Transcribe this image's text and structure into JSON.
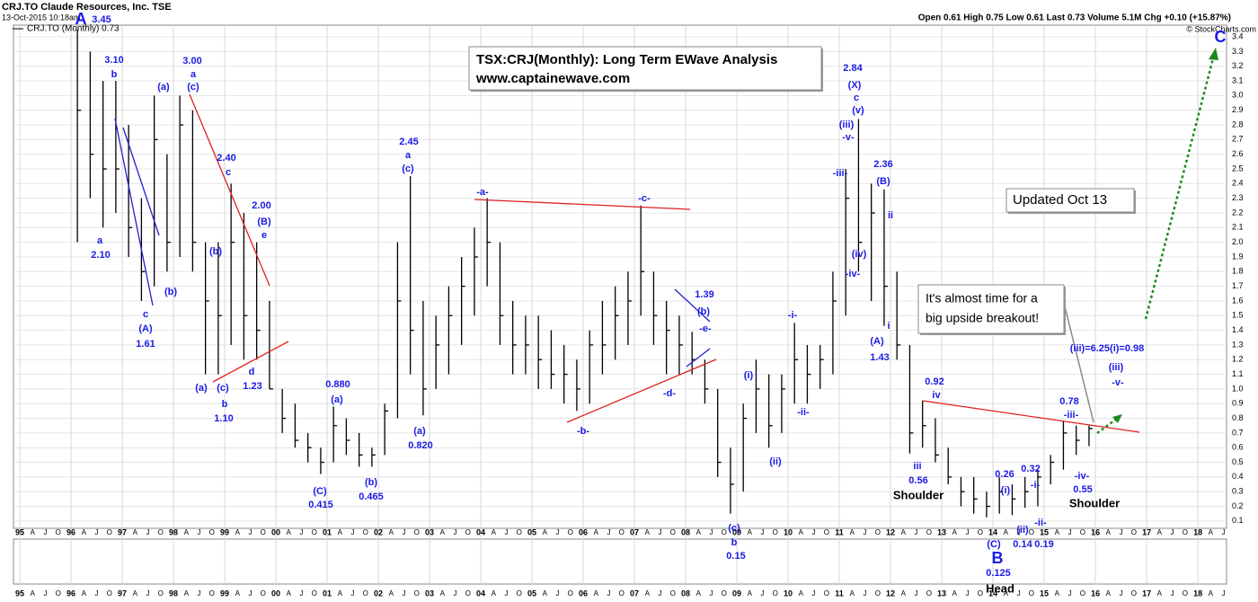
{
  "header": {
    "symbol": "CRJ.TO Claude Resources, Inc. TSE",
    "timestamp": "13-Oct-2015 10:18am",
    "legend": "CRJ.TO (Monthly) 0.73",
    "quote": "Open 0.61 High 0.75 Low 0.61 Last 0.73 Volume 5.1M Chg +0.10 (+15.87%)",
    "credit": "© StockCharts.com"
  },
  "boxes": {
    "title": [
      "TSX:CRJ(Monthly): Long Term EWave Analysis",
      "www.captainewave.com"
    ],
    "updated": "Updated Oct 13",
    "callout": [
      "It's almost time for a",
      "big upside breakout!"
    ]
  },
  "chart_data": {
    "type": "hlc",
    "color": "#000000",
    "x": [
      1996.125,
      1996.375,
      1996.625,
      1996.875,
      1997.125,
      1997.375,
      1997.625,
      1997.875,
      1998.125,
      1998.375,
      1998.625,
      1998.875,
      1999.125,
      1999.375,
      1999.625,
      1999.875,
      2000.125,
      2000.375,
      2000.625,
      2000.875,
      2001.125,
      2001.375,
      2001.625,
      2001.875,
      2002.125,
      2002.375,
      2002.625,
      2002.875,
      2003.125,
      2003.375,
      2003.625,
      2003.875,
      2004.125,
      2004.375,
      2004.625,
      2004.875,
      2005.125,
      2005.375,
      2005.625,
      2005.875,
      2006.125,
      2006.375,
      2006.625,
      2006.875,
      2007.125,
      2007.375,
      2007.625,
      2007.875,
      2008.125,
      2008.375,
      2008.625,
      2008.875,
      2009.125,
      2009.375,
      2009.625,
      2009.875,
      2010.125,
      2010.375,
      2010.625,
      2010.875,
      2011.125,
      2011.375,
      2011.625,
      2011.875,
      2012.125,
      2012.375,
      2012.625,
      2012.875,
      2013.125,
      2013.375,
      2013.625,
      2013.875,
      2014.125,
      2014.375,
      2014.625,
      2014.875,
      2015.125,
      2015.375,
      2015.625,
      2015.875
    ],
    "high": [
      3.45,
      3.3,
      3.1,
      3.1,
      2.8,
      2.3,
      3.0,
      2.6,
      3.0,
      2.9,
      2.0,
      2.0,
      2.4,
      2.2,
      2.0,
      1.6,
      1.0,
      0.9,
      0.7,
      0.6,
      0.88,
      0.8,
      0.7,
      0.6,
      0.9,
      2.0,
      2.45,
      1.6,
      1.5,
      1.7,
      1.9,
      2.1,
      2.3,
      2.0,
      1.6,
      1.5,
      1.5,
      1.4,
      1.3,
      1.2,
      1.4,
      1.6,
      1.7,
      1.8,
      2.25,
      1.8,
      1.6,
      1.5,
      1.39,
      1.2,
      1.0,
      0.6,
      0.9,
      1.2,
      1.1,
      1.1,
      1.45,
      1.3,
      1.3,
      1.8,
      2.5,
      2.84,
      2.4,
      2.36,
      1.8,
      1.3,
      0.92,
      0.8,
      0.6,
      0.4,
      0.4,
      0.3,
      0.4,
      0.35,
      0.4,
      0.45,
      0.55,
      0.78,
      0.75,
      0.75
    ],
    "low": [
      2.0,
      2.3,
      2.1,
      2.2,
      1.9,
      1.6,
      1.7,
      1.8,
      1.9,
      1.8,
      1.1,
      1.1,
      1.3,
      1.2,
      1.2,
      1.0,
      0.7,
      0.6,
      0.5,
      0.42,
      0.5,
      0.55,
      0.47,
      0.47,
      0.55,
      0.8,
      1.1,
      0.82,
      1.0,
      1.1,
      1.3,
      1.5,
      1.7,
      1.3,
      1.1,
      1.1,
      1.0,
      1.0,
      0.9,
      0.85,
      0.9,
      1.1,
      1.2,
      1.3,
      1.5,
      1.3,
      1.1,
      1.1,
      1.1,
      0.9,
      0.4,
      0.15,
      0.3,
      0.7,
      0.6,
      0.7,
      0.9,
      0.9,
      1.0,
      1.1,
      1.5,
      1.8,
      1.6,
      1.43,
      1.2,
      0.56,
      0.6,
      0.5,
      0.35,
      0.2,
      0.15,
      0.125,
      0.15,
      0.14,
      0.19,
      0.2,
      0.35,
      0.45,
      0.55,
      0.61
    ],
    "close": [
      2.9,
      2.6,
      2.5,
      2.5,
      2.1,
      1.8,
      2.7,
      2.0,
      2.8,
      2.0,
      1.6,
      1.5,
      2.0,
      1.5,
      1.4,
      1.0,
      0.8,
      0.65,
      0.6,
      0.5,
      0.75,
      0.65,
      0.55,
      0.55,
      0.85,
      1.6,
      1.4,
      1.0,
      1.3,
      1.5,
      1.7,
      1.9,
      2.0,
      1.5,
      1.3,
      1.3,
      1.2,
      1.1,
      1.1,
      1.0,
      1.3,
      1.3,
      1.5,
      1.6,
      1.8,
      1.5,
      1.4,
      1.3,
      1.2,
      1.0,
      0.5,
      0.35,
      0.8,
      1.0,
      0.75,
      1.0,
      1.2,
      1.1,
      1.2,
      1.6,
      2.3,
      2.0,
      2.2,
      1.7,
      1.3,
      0.7,
      0.75,
      0.55,
      0.4,
      0.3,
      0.25,
      0.2,
      0.3,
      0.25,
      0.3,
      0.4,
      0.5,
      0.7,
      0.65,
      0.73
    ],
    "xlim": [
      1994.877,
      2018.56
    ],
    "ylim": [
      0.05,
      3.48
    ],
    "grid": true,
    "xticks": [
      {
        "value": 1995,
        "label": "95"
      },
      {
        "value": 1996,
        "label": "96"
      },
      {
        "value": 1997,
        "label": "97"
      },
      {
        "value": 1998,
        "label": "98"
      },
      {
        "value": 1999,
        "label": "99"
      },
      {
        "value": 2000,
        "label": "00"
      },
      {
        "value": 2001,
        "label": "01"
      },
      {
        "value": 2002,
        "label": "02"
      },
      {
        "value": 2003,
        "label": "03"
      },
      {
        "value": 2004,
        "label": "04"
      },
      {
        "value": 2005,
        "label": "05"
      },
      {
        "value": 2006,
        "label": "06"
      },
      {
        "value": 2007,
        "label": "07"
      },
      {
        "value": 2008,
        "label": "08"
      },
      {
        "value": 2009,
        "label": "09"
      },
      {
        "value": 2010,
        "label": "10"
      },
      {
        "value": 2011,
        "label": "11"
      },
      {
        "value": 2012,
        "label": "12"
      },
      {
        "value": 2013,
        "label": "13"
      },
      {
        "value": 2014,
        "label": "14"
      },
      {
        "value": 2015,
        "label": "15"
      },
      {
        "value": 2016,
        "label": "16"
      },
      {
        "value": 2017,
        "label": "17"
      },
      {
        "value": 2018,
        "label": "18"
      }
    ],
    "month_letters": [
      "A",
      "J",
      "O"
    ],
    "yticks": [
      0.1,
      0.2,
      0.3,
      0.4,
      0.5,
      0.6,
      0.7,
      0.8,
      0.9,
      {
        "value": 1,
        "label": "1.0"
      },
      1.1,
      1.2,
      1.3,
      1.4,
      1.5,
      1.6,
      1.7,
      1.8,
      1.9,
      {
        "value": 2,
        "label": "2.0"
      },
      2.1,
      2.2,
      2.3,
      2.4,
      2.5,
      2.6,
      2.7,
      2.8,
      2.9,
      {
        "value": 3,
        "label": "3.0"
      },
      3.1,
      3.2,
      3.3,
      3.4
    ],
    "annotations": [
      "A",
      "3.45",
      "3.10",
      "b",
      "a",
      "2.10",
      "c",
      "(A)",
      "1.61",
      "(b)",
      "(a)",
      "3.00",
      "a",
      "(c)",
      "2.40",
      "c",
      "2.00",
      "(B)",
      "e",
      "(b)",
      "(a)",
      "(c)",
      "b",
      "1.10",
      "d",
      "1.23",
      "0.880",
      "(a)",
      "(C)",
      "0.415",
      "(b)",
      "0.465",
      "2.45",
      "a",
      "(c)",
      "(a)",
      "0.820",
      "-a-",
      "-c-",
      "-b-",
      "-d-",
      "1.39",
      "(b)",
      "-e-",
      "(c)",
      "b",
      "0.15",
      "(i)",
      "(ii)",
      "-i-",
      "-ii-",
      "2.84",
      "(X)",
      "c",
      "(v)",
      "(iii)",
      "-v-",
      "-iii-",
      "(iv)",
      "-iv-",
      "2.36",
      "(B)",
      "ii",
      "i",
      "(A)",
      "1.43",
      "0.92",
      "iv",
      "iii",
      "0.56",
      "0.26",
      "(i)",
      "0.32",
      "-i-",
      "(ii)",
      "0.14",
      "-ii-",
      "0.19",
      "(C)",
      "B",
      "0.125",
      "0.78",
      "-iii-",
      "-iv-",
      "0.55",
      "(iii)=6.25(i)=0.98",
      "(iii)",
      "-v-",
      "C",
      "Shoulder",
      "Head",
      "Shoulder"
    ]
  }
}
